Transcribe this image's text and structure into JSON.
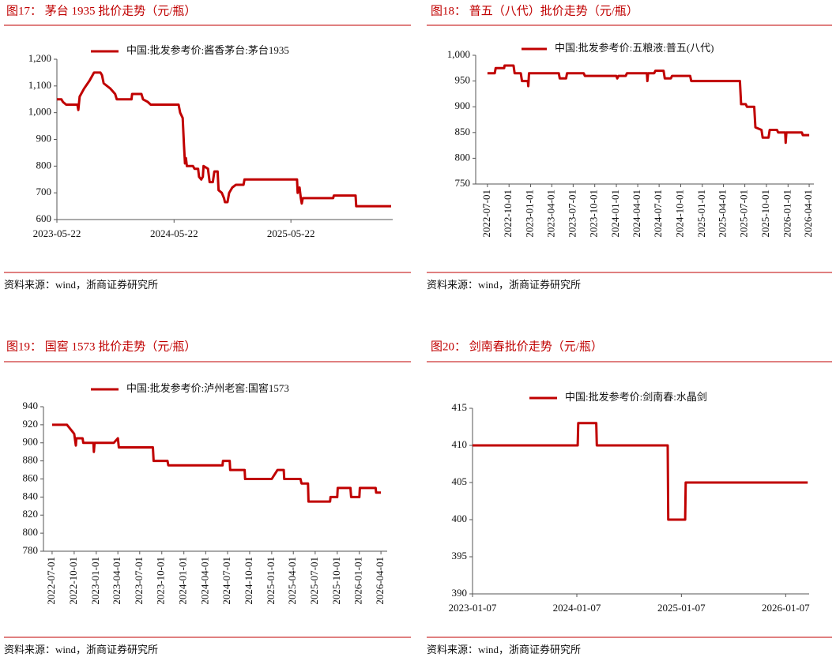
{
  "chart_data": [
    {
      "type": "line",
      "title": "图17： 茅台 1935 批价走势（元/瓶）",
      "source": "资料来源：wind，浙商证券研究所",
      "x": [
        "2023-05-22",
        "2023-06-05",
        "2023-06-10",
        "2023-06-20",
        "2023-07-25",
        "2023-07-28",
        "2023-08-01",
        "2023-08-15",
        "2023-09-01",
        "2023-09-15",
        "2023-10-05",
        "2023-10-10",
        "2023-10-15",
        "2023-11-05",
        "2023-11-20",
        "2023-11-25",
        "2024-01-10",
        "2024-01-12",
        "2024-02-10",
        "2024-02-15",
        "2024-03-01",
        "2024-03-10",
        "2024-06-05",
        "2024-06-10",
        "2024-06-18",
        "2024-06-22",
        "2024-06-25",
        "2024-06-28",
        "2024-07-01",
        "2024-07-20",
        "2024-07-25",
        "2024-08-05",
        "2024-08-08",
        "2024-08-15",
        "2024-08-20",
        "2024-08-22",
        "2024-09-05",
        "2024-09-10",
        "2024-09-20",
        "2024-09-25",
        "2024-10-05",
        "2024-10-08",
        "2024-10-18",
        "2024-10-25",
        "2024-10-28",
        "2024-11-05",
        "2024-11-10",
        "2024-11-20",
        "2024-12-01",
        "2024-12-25",
        "2024-12-28",
        "2025-06-10",
        "2025-06-12",
        "2025-06-18",
        "2025-06-22",
        "2025-06-25",
        "2025-06-28",
        "2025-10-01",
        "2025-10-03",
        "2025-12-10",
        "2025-12-12",
        "2026-03-31"
      ],
      "series": [
        {
          "name": "中国:批发参考价:酱香茅台:茅台1935",
          "color": "#c00000",
          "values": [
            1050,
            1050,
            1040,
            1030,
            1030,
            1010,
            1060,
            1090,
            1120,
            1150,
            1150,
            1140,
            1110,
            1090,
            1070,
            1050,
            1050,
            1070,
            1070,
            1050,
            1040,
            1030,
            1030,
            1000,
            980,
            880,
            810,
            830,
            800,
            800,
            790,
            790,
            760,
            750,
            760,
            800,
            790,
            740,
            740,
            780,
            780,
            710,
            700,
            680,
            665,
            665,
            700,
            720,
            730,
            730,
            750,
            750,
            700,
            720,
            680,
            660,
            680,
            680,
            690,
            690,
            650,
            650
          ]
        }
      ],
      "xlim": [
        "2023-05-22",
        "2026-04-05"
      ],
      "xticks": [
        "2023-05-22",
        "2024-05-22",
        "2025-05-22"
      ],
      "ylim": [
        600,
        1200
      ],
      "yticks": [
        600,
        700,
        800,
        900,
        {
          "value": 1000,
          "label": "1,000"
        },
        {
          "value": 1100,
          "label": "1,100"
        },
        {
          "value": 1200,
          "label": "1,200"
        }
      ],
      "grid": false
    },
    {
      "type": "line",
      "title": "图18： 普五（八代）批价走势（元/瓶）",
      "source": "资料来源：wind，浙商证券研究所",
      "x": [
        "2022-07-01",
        "2022-08-01",
        "2022-08-05",
        "2022-09-10",
        "2022-09-12",
        "2022-10-20",
        "2022-10-25",
        "2022-11-20",
        "2022-11-25",
        "2022-12-20",
        "2022-12-22",
        "2022-12-25",
        "2023-05-01",
        "2023-05-05",
        "2023-06-01",
        "2023-06-05",
        "2023-08-15",
        "2023-08-20",
        "2024-01-01",
        "2024-01-05",
        "2024-01-10",
        "2024-02-10",
        "2024-02-15",
        "2024-05-10",
        "2024-05-12",
        "2024-05-15",
        "2024-06-10",
        "2024-06-15",
        "2024-07-20",
        "2024-07-25",
        "2024-08-20",
        "2024-08-25",
        "2024-11-10",
        "2024-11-15",
        "2025-06-10",
        "2025-06-15",
        "2025-07-05",
        "2025-07-10",
        "2025-08-10",
        "2025-08-15",
        "2025-09-10",
        "2025-09-15",
        "2025-10-10",
        "2025-10-15",
        "2025-11-15",
        "2025-11-20",
        "2025-12-20",
        "2025-12-22",
        "2025-12-25",
        "2026-03-01",
        "2026-03-05",
        "2026-04-01"
      ],
      "series": [
        {
          "name": "中国:批发参考价:五粮液:普五(八代)",
          "color": "#c00000",
          "values": [
            965,
            965,
            975,
            975,
            980,
            980,
            965,
            965,
            950,
            950,
            940,
            965,
            965,
            955,
            955,
            965,
            965,
            960,
            960,
            955,
            960,
            960,
            965,
            965,
            950,
            965,
            965,
            970,
            970,
            955,
            955,
            960,
            960,
            950,
            950,
            905,
            905,
            900,
            900,
            860,
            855,
            840,
            840,
            855,
            855,
            850,
            850,
            830,
            850,
            850,
            845,
            845
          ]
        }
      ],
      "xlim": [
        "2022-05-12",
        "2026-04-21"
      ],
      "xticks": [
        "2022-07-01",
        "2022-10-01",
        "2023-01-01",
        "2023-04-01",
        "2023-07-01",
        "2023-10-01",
        "2024-01-01",
        "2024-04-01",
        "2024-07-01",
        "2024-10-01",
        "2025-01-01",
        "2025-04-01",
        "2025-07-01",
        "2025-10-01",
        "2026-01-01",
        "2026-04-01"
      ],
      "ylim": [
        750,
        1000
      ],
      "yticks": [
        750,
        800,
        850,
        900,
        950,
        {
          "value": 1000,
          "label": "1,000"
        }
      ],
      "grid": false
    },
    {
      "type": "line",
      "title": "图19： 国窖 1573 批价走势（元/瓶）",
      "source": "资料来源：wind，浙商证券研究所",
      "x": [
        "2022-07-01",
        "2022-09-01",
        "2022-10-01",
        "2022-10-08",
        "2022-10-10",
        "2022-11-05",
        "2022-11-08",
        "2022-12-20",
        "2022-12-22",
        "2022-12-25",
        "2023-03-15",
        "2023-04-01",
        "2023-04-05",
        "2023-08-25",
        "2023-08-28",
        "2023-10-25",
        "2023-10-28",
        "2024-06-10",
        "2024-06-12",
        "2024-07-10",
        "2024-07-12",
        "2024-09-10",
        "2024-09-12",
        "2025-01-01",
        "2025-01-25",
        "2025-02-20",
        "2025-02-22",
        "2025-05-01",
        "2025-05-05",
        "2025-06-01",
        "2025-06-03",
        "2025-09-01",
        "2025-09-03",
        "2025-10-01",
        "2025-10-03",
        "2025-11-25",
        "2025-11-28",
        "2026-01-01",
        "2026-01-03",
        "2026-03-10",
        "2026-03-12",
        "2026-04-01"
      ],
      "series": [
        {
          "name": "中国:批发参考价:泸州老窖:国窖1573",
          "color": "#c00000",
          "values": [
            920,
            920,
            910,
            897,
            905,
            905,
            900,
            900,
            890,
            900,
            900,
            905,
            895,
            895,
            880,
            880,
            875,
            875,
            880,
            880,
            870,
            870,
            860,
            860,
            870,
            870,
            860,
            860,
            855,
            855,
            835,
            835,
            840,
            840,
            850,
            850,
            840,
            840,
            850,
            850,
            845,
            845
          ]
        }
      ],
      "xlim": [
        "2022-05-26",
        "2026-04-27"
      ],
      "xticks": [
        "2022-07-01",
        "2022-10-01",
        "2023-01-01",
        "2023-04-01",
        "2023-07-01",
        "2023-10-01",
        "2024-01-01",
        "2024-04-01",
        "2024-07-01",
        "2024-10-01",
        "2025-01-01",
        "2025-04-01",
        "2025-07-01",
        "2025-10-01",
        "2026-01-01",
        "2026-04-01"
      ],
      "ylim": [
        780,
        940
      ],
      "yticks": [
        780,
        800,
        820,
        840,
        860,
        880,
        900,
        920,
        940
      ],
      "grid": false
    },
    {
      "type": "line",
      "title": "图20： 剑南春批价走势（元/瓶）",
      "source": "资料来源：wind，浙商证券研究所",
      "x": [
        "2023-01-07",
        "2024-01-10",
        "2024-01-12",
        "2024-03-15",
        "2024-03-17",
        "2024-11-20",
        "2024-11-22",
        "2025-01-20",
        "2025-01-22",
        "2026-03-25"
      ],
      "series": [
        {
          "name": "中国:批发参考价:剑南春:水晶剑",
          "color": "#c00000",
          "values": [
            410,
            410,
            413,
            413,
            410,
            410,
            400,
            400,
            405,
            405
          ]
        }
      ],
      "xlim": [
        "2023-01-07",
        "2026-03-30"
      ],
      "xticks": [
        "2023-01-07",
        "2024-01-07",
        "2025-01-07",
        "2026-01-07"
      ],
      "ylim": [
        390,
        415
      ],
      "yticks": [
        390,
        395,
        400,
        405,
        410,
        415
      ],
      "grid": false
    }
  ]
}
